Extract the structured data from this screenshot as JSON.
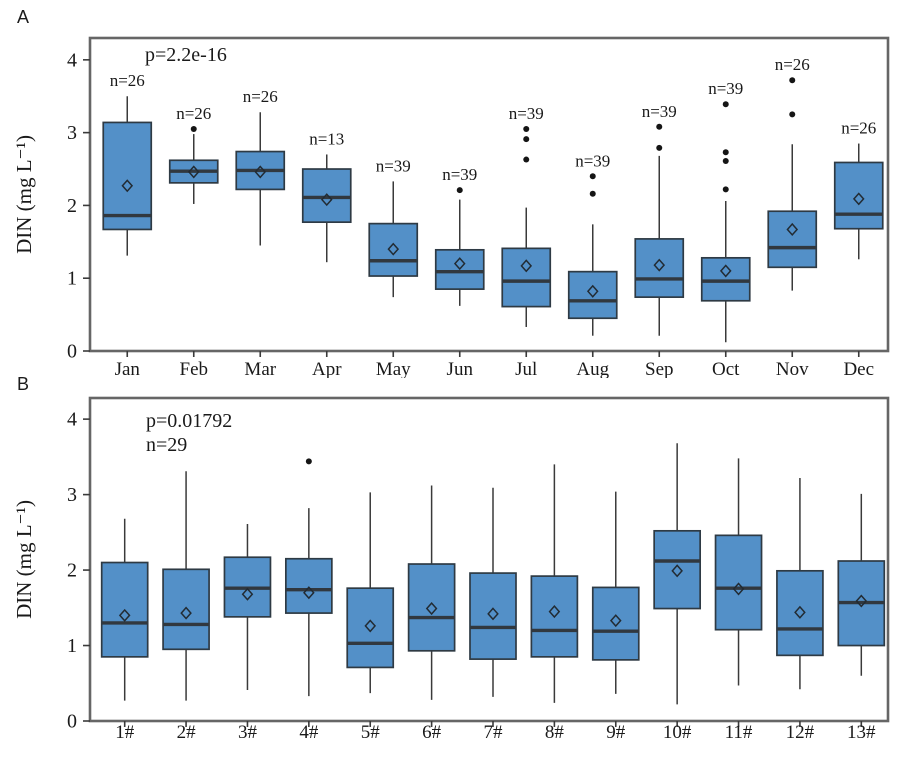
{
  "figure": {
    "colors": {
      "box_fill": "#5390c8",
      "box_stroke": "#2e3a44",
      "median": "#31383f",
      "whisker": "#3a3a3a",
      "outlier": "#151515",
      "mean_stroke": "#222b33",
      "frame": "#666666",
      "text": "#1a1a1a"
    }
  },
  "chart_data": [
    {
      "type": "boxplot",
      "panel_label": "A",
      "annotation_p": "p=2.2e-16",
      "annotation_n": "",
      "ylabel": "DIN (mg L⁻¹)",
      "yticks": [
        0,
        1,
        2,
        3,
        4
      ],
      "ylim": [
        0,
        4.3
      ],
      "grid": false,
      "categories": [
        "Jan",
        "Feb",
        "Mar",
        "Apr",
        "May",
        "Jun",
        "Jul",
        "Aug",
        "Sep",
        "Oct",
        "Nov",
        "Dec"
      ],
      "groups": [
        {
          "label": "Jan",
          "n_label": "n=26",
          "whislo": 1.31,
          "q1": 1.67,
          "med": 1.86,
          "q3": 3.14,
          "whishi": 3.5,
          "mean": 2.27,
          "outliers": []
        },
        {
          "label": "Feb",
          "n_label": "n=26",
          "whislo": 2.02,
          "q1": 2.31,
          "med": 2.47,
          "q3": 2.62,
          "whishi": 2.98,
          "mean": 2.46,
          "outliers": [
            3.05
          ]
        },
        {
          "label": "Mar",
          "n_label": "n=26",
          "whislo": 1.45,
          "q1": 2.22,
          "med": 2.48,
          "q3": 2.74,
          "whishi": 3.28,
          "mean": 2.46,
          "outliers": []
        },
        {
          "label": "Apr",
          "n_label": "n=13",
          "whislo": 1.22,
          "q1": 1.77,
          "med": 2.11,
          "q3": 2.5,
          "whishi": 2.7,
          "mean": 2.08,
          "outliers": []
        },
        {
          "label": "May",
          "n_label": "n=39",
          "whislo": 0.74,
          "q1": 1.03,
          "med": 1.24,
          "q3": 1.75,
          "whishi": 2.33,
          "mean": 1.4,
          "outliers": []
        },
        {
          "label": "Jun",
          "n_label": "n=39",
          "whislo": 0.62,
          "q1": 0.85,
          "med": 1.09,
          "q3": 1.39,
          "whishi": 2.08,
          "mean": 1.2,
          "outliers": [
            2.21
          ]
        },
        {
          "label": "Jul",
          "n_label": "n=39",
          "whislo": 0.33,
          "q1": 0.61,
          "med": 0.96,
          "q3": 1.41,
          "whishi": 1.97,
          "mean": 1.17,
          "outliers": [
            2.63,
            2.91,
            3.05
          ]
        },
        {
          "label": "Aug",
          "n_label": "n=39",
          "whislo": 0.21,
          "q1": 0.45,
          "med": 0.69,
          "q3": 1.09,
          "whishi": 1.74,
          "mean": 0.82,
          "outliers": [
            2.16,
            2.4
          ]
        },
        {
          "label": "Sep",
          "n_label": "n=39",
          "whislo": 0.21,
          "q1": 0.74,
          "med": 0.99,
          "q3": 1.54,
          "whishi": 2.68,
          "mean": 1.18,
          "outliers": [
            2.79,
            3.08
          ]
        },
        {
          "label": "Oct",
          "n_label": "n=39",
          "whislo": 0.12,
          "q1": 0.69,
          "med": 0.96,
          "q3": 1.28,
          "whishi": 2.06,
          "mean": 1.1,
          "outliers": [
            2.22,
            2.61,
            2.73,
            3.39
          ]
        },
        {
          "label": "Nov",
          "n_label": "n=26",
          "whislo": 0.83,
          "q1": 1.15,
          "med": 1.42,
          "q3": 1.92,
          "whishi": 2.84,
          "mean": 1.67,
          "outliers": [
            3.25,
            3.72
          ]
        },
        {
          "label": "Dec",
          "n_label": "n=26",
          "whislo": 1.26,
          "q1": 1.68,
          "med": 1.88,
          "q3": 2.59,
          "whishi": 2.85,
          "mean": 2.09,
          "outliers": []
        }
      ]
    },
    {
      "type": "boxplot",
      "panel_label": "B",
      "annotation_p": "p=0.01792",
      "annotation_n": "n=29",
      "ylabel": "DIN (mg L⁻¹)",
      "yticks": [
        0,
        1,
        2,
        3,
        4
      ],
      "ylim": [
        0,
        4.28
      ],
      "grid": false,
      "categories": [
        "1#",
        "2#",
        "3#",
        "4#",
        "5#",
        "6#",
        "7#",
        "8#",
        "9#",
        "10#",
        "11#",
        "12#",
        "13#"
      ],
      "groups": [
        {
          "label": "1#",
          "n_label": "",
          "whislo": 0.27,
          "q1": 0.85,
          "med": 1.3,
          "q3": 2.1,
          "whishi": 2.68,
          "mean": 1.4,
          "outliers": []
        },
        {
          "label": "2#",
          "n_label": "",
          "whislo": 0.27,
          "q1": 0.95,
          "med": 1.28,
          "q3": 2.01,
          "whishi": 3.31,
          "mean": 1.43,
          "outliers": []
        },
        {
          "label": "3#",
          "n_label": "",
          "whislo": 0.41,
          "q1": 1.38,
          "med": 1.76,
          "q3": 2.17,
          "whishi": 2.61,
          "mean": 1.68,
          "outliers": []
        },
        {
          "label": "4#",
          "n_label": "",
          "whislo": 0.33,
          "q1": 1.43,
          "med": 1.74,
          "q3": 2.15,
          "whishi": 2.82,
          "mean": 1.7,
          "outliers": [
            3.44
          ]
        },
        {
          "label": "5#",
          "n_label": "",
          "whislo": 0.37,
          "q1": 0.71,
          "med": 1.03,
          "q3": 1.76,
          "whishi": 3.03,
          "mean": 1.26,
          "outliers": []
        },
        {
          "label": "6#",
          "n_label": "",
          "whislo": 0.28,
          "q1": 0.93,
          "med": 1.37,
          "q3": 2.08,
          "whishi": 3.12,
          "mean": 1.49,
          "outliers": []
        },
        {
          "label": "7#",
          "n_label": "",
          "whislo": 0.32,
          "q1": 0.82,
          "med": 1.24,
          "q3": 1.96,
          "whishi": 3.09,
          "mean": 1.42,
          "outliers": []
        },
        {
          "label": "8#",
          "n_label": "",
          "whislo": 0.24,
          "q1": 0.85,
          "med": 1.2,
          "q3": 1.92,
          "whishi": 3.4,
          "mean": 1.45,
          "outliers": []
        },
        {
          "label": "9#",
          "n_label": "",
          "whislo": 0.36,
          "q1": 0.81,
          "med": 1.19,
          "q3": 1.77,
          "whishi": 3.04,
          "mean": 1.33,
          "outliers": []
        },
        {
          "label": "10#",
          "n_label": "",
          "whislo": 0.22,
          "q1": 1.49,
          "med": 2.12,
          "q3": 2.52,
          "whishi": 3.68,
          "mean": 1.99,
          "outliers": []
        },
        {
          "label": "11#",
          "n_label": "",
          "whislo": 0.47,
          "q1": 1.21,
          "med": 1.76,
          "q3": 2.46,
          "whishi": 3.48,
          "mean": 1.75,
          "outliers": []
        },
        {
          "label": "12#",
          "n_label": "",
          "whislo": 0.42,
          "q1": 0.87,
          "med": 1.22,
          "q3": 1.99,
          "whishi": 3.22,
          "mean": 1.44,
          "outliers": []
        },
        {
          "label": "13#",
          "n_label": "",
          "whislo": 0.6,
          "q1": 1.0,
          "med": 1.57,
          "q3": 2.12,
          "whishi": 3.01,
          "mean": 1.59,
          "outliers": []
        }
      ]
    }
  ]
}
